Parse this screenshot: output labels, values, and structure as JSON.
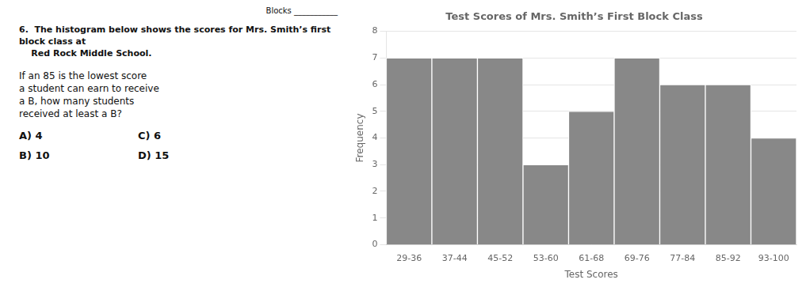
{
  "chart_data": {
    "type": "bar",
    "title": "Test Scores of Mrs. Smith’s First Block Class",
    "xlabel": "Test Scores",
    "ylabel": "Frequency",
    "categories": [
      "29-36",
      "37-44",
      "45-52",
      "53-60",
      "61-68",
      "69-76",
      "77-84",
      "85-92",
      "93-100"
    ],
    "values": [
      7,
      7,
      7,
      3,
      5,
      7,
      6,
      6,
      4
    ],
    "color": "#888888",
    "ylim": [
      0,
      8
    ],
    "yticks": [
      0,
      1,
      2,
      3,
      4,
      5,
      6,
      7,
      8
    ],
    "grid": true,
    "annotations": [
      "Blocks ___________",
      "6.  The histogram below shows the scores for Mrs. Smith’s first block class at\n    Red Rock Middle School.",
      "If an 85 is the lowest score\na student can earn to receive\na B, how many students\nreceived at least a B?",
      "A) 4",
      "C) 6",
      "B) 10",
      "D) 15"
    ]
  }
}
